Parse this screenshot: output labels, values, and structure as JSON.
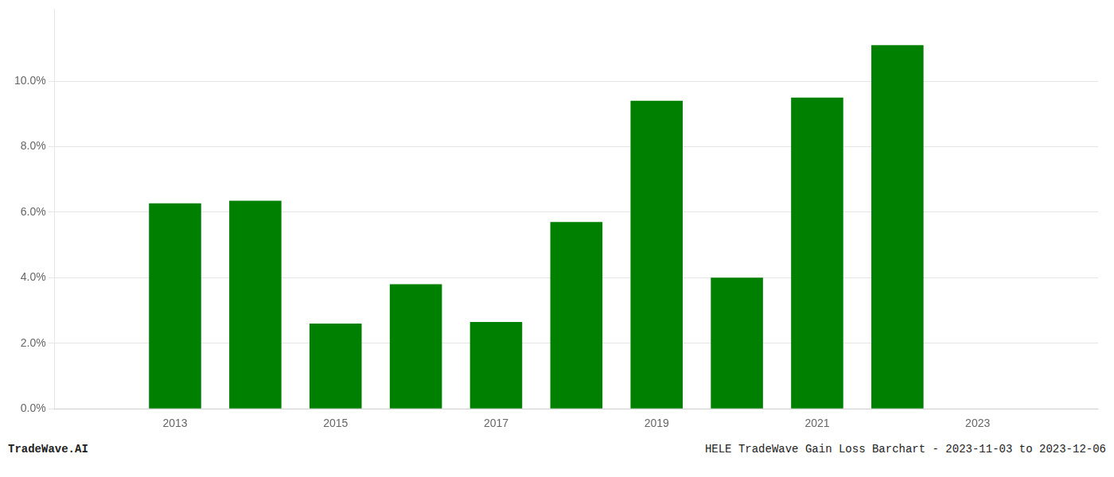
{
  "chart_data": {
    "type": "bar",
    "x": [
      2013,
      2014,
      2015,
      2016,
      2017,
      2018,
      2019,
      2020,
      2021,
      2022,
      2023
    ],
    "values": [
      0.0627,
      0.0635,
      0.026,
      0.038,
      0.0265,
      0.057,
      0.094,
      0.04,
      0.095,
      0.111,
      null
    ],
    "color": "#008000",
    "xlim": [
      2011.5,
      2024.5
    ],
    "xticks": [
      2013,
      2015,
      2017,
      2019,
      2021,
      2023
    ],
    "ylim": [
      0.0,
      0.122
    ],
    "yticks": [
      {
        "value": 0.0,
        "label": "0.0%"
      },
      {
        "value": 0.02,
        "label": "2.0%"
      },
      {
        "value": 0.04,
        "label": "4.0%"
      },
      {
        "value": 0.06,
        "label": "6.0%"
      },
      {
        "value": 0.08,
        "label": "8.0%"
      },
      {
        "value": 0.1,
        "label": "10.0%"
      }
    ],
    "grid": true,
    "annotations": [
      "TradeWave.AI",
      "HELE TradeWave Gain Loss Barchart - 2023-11-03 to 2023-12-06"
    ]
  }
}
